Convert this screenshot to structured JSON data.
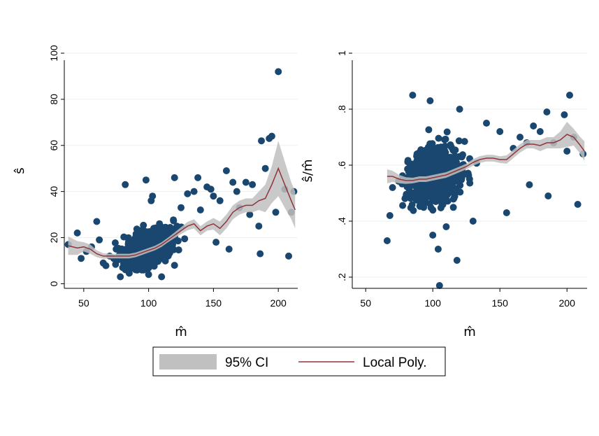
{
  "legend": {
    "ci_label": "95% CI",
    "line_label": "Local Poly."
  },
  "colors": {
    "points": "#1a476f",
    "ci": "#c0c0c0",
    "line": "#90353b",
    "grid": "#eaf2f3"
  },
  "chart_data": [
    {
      "type": "scatter",
      "xlabel": "m̂",
      "ylabel": "ŝ",
      "xlim": [
        35,
        215
      ],
      "ylim": [
        -2,
        100
      ],
      "xticks": [
        {
          "v": 50,
          "label": "50"
        },
        {
          "v": 100,
          "label": "100"
        },
        {
          "v": 150,
          "label": "150"
        },
        {
          "v": 200,
          "label": "200"
        }
      ],
      "yticks": [
        {
          "v": 0,
          "label": "0"
        },
        {
          "v": 20,
          "label": "20"
        },
        {
          "v": 40,
          "label": "40"
        },
        {
          "v": 60,
          "label": "60"
        },
        {
          "v": 80,
          "label": "80"
        },
        {
          "v": 100,
          "label": "100"
        }
      ],
      "grid": true,
      "cloud": {
        "x_range": [
          62,
          162
        ],
        "center_x": 100,
        "spread_x": 17,
        "n": 750,
        "slope": 0.22,
        "base": 16,
        "noise": 5
      },
      "points": [
        [
          38,
          17
        ],
        [
          45,
          22
        ],
        [
          48,
          11
        ],
        [
          52,
          14
        ],
        [
          56,
          16
        ],
        [
          60,
          27
        ],
        [
          62,
          19
        ],
        [
          65,
          9
        ],
        [
          70,
          12
        ],
        [
          75,
          15
        ],
        [
          82,
          43
        ],
        [
          98,
          45
        ],
        [
          102,
          36
        ],
        [
          103,
          38
        ],
        [
          120,
          46
        ],
        [
          125,
          33
        ],
        [
          130,
          39
        ],
        [
          135,
          40
        ],
        [
          138,
          46
        ],
        [
          140,
          32
        ],
        [
          145,
          42
        ],
        [
          148,
          41
        ],
        [
          150,
          38
        ],
        [
          152,
          18
        ],
        [
          155,
          36
        ],
        [
          160,
          49
        ],
        [
          162,
          15
        ],
        [
          165,
          44
        ],
        [
          168,
          40
        ],
        [
          170,
          33
        ],
        [
          175,
          44
        ],
        [
          178,
          30
        ],
        [
          180,
          43
        ],
        [
          185,
          25
        ],
        [
          186,
          13
        ],
        [
          187,
          62
        ],
        [
          190,
          50
        ],
        [
          193,
          63
        ],
        [
          195,
          64
        ],
        [
          198,
          31
        ],
        [
          200,
          92
        ],
        [
          205,
          41
        ],
        [
          208,
          12
        ],
        [
          210,
          31
        ],
        [
          212,
          40
        ],
        [
          100,
          4
        ],
        [
          110,
          3
        ],
        [
          90,
          6
        ],
        [
          80,
          7
        ],
        [
          120,
          8
        ]
      ],
      "fit_x": [
        38,
        45,
        50,
        55,
        60,
        65,
        70,
        75,
        80,
        85,
        90,
        95,
        100,
        105,
        110,
        115,
        120,
        125,
        130,
        135,
        140,
        145,
        150,
        155,
        160,
        165,
        170,
        175,
        180,
        185,
        190,
        195,
        200,
        205,
        210,
        213
      ],
      "fit_y": [
        16.5,
        15.5,
        16,
        15,
        13,
        12,
        12,
        12,
        12,
        12,
        12.5,
        13.5,
        14.5,
        15.5,
        17,
        19,
        21,
        23,
        25,
        26,
        23,
        25,
        26,
        24,
        27,
        31,
        33,
        34,
        34,
        36,
        37,
        43,
        50,
        43,
        36,
        32
      ],
      "ci_half": [
        4,
        3,
        2,
        2,
        1.5,
        1.2,
        1,
        1,
        1,
        1,
        1,
        1,
        1,
        1,
        1,
        1,
        1.2,
        1.5,
        1.8,
        2,
        2,
        2,
        2.5,
        3,
        3,
        3,
        3,
        3,
        3,
        4,
        6,
        8,
        12,
        10,
        8,
        8
      ]
    },
    {
      "type": "scatter",
      "xlabel": "m̂",
      "ylabel": "ŝ/m̂",
      "xlim": [
        40,
        215
      ],
      "ylim": [
        0.16,
        1.0
      ],
      "xticks": [
        {
          "v": 50,
          "label": "50"
        },
        {
          "v": 100,
          "label": "100"
        },
        {
          "v": 150,
          "label": "150"
        },
        {
          "v": 200,
          "label": "200"
        }
      ],
      "yticks": [
        {
          "v": 0.2,
          "label": ".2"
        },
        {
          "v": 0.4,
          "label": ".4"
        },
        {
          "v": 0.6,
          "label": ".6"
        },
        {
          "v": 0.8,
          "label": ".8"
        },
        {
          "v": 1.0,
          "label": "1"
        }
      ],
      "grid": true,
      "cloud": {
        "x_range": [
          65,
          165
        ],
        "center_x": 102,
        "spread_x": 17,
        "n": 750,
        "slope": 0.0008,
        "base": 0.56,
        "noise": 0.07
      },
      "points": [
        [
          66,
          0.33
        ],
        [
          68,
          0.42
        ],
        [
          70,
          0.52
        ],
        [
          85,
          0.85
        ],
        [
          98,
          0.83
        ],
        [
          100,
          0.35
        ],
        [
          104,
          0.3
        ],
        [
          105,
          0.17
        ],
        [
          110,
          0.38
        ],
        [
          118,
          0.26
        ],
        [
          120,
          0.8
        ],
        [
          130,
          0.4
        ],
        [
          140,
          0.75
        ],
        [
          150,
          0.72
        ],
        [
          155,
          0.43
        ],
        [
          160,
          0.66
        ],
        [
          165,
          0.7
        ],
        [
          170,
          0.68
        ],
        [
          172,
          0.53
        ],
        [
          175,
          0.74
        ],
        [
          180,
          0.72
        ],
        [
          185,
          0.79
        ],
        [
          186,
          0.49
        ],
        [
          190,
          0.68
        ],
        [
          198,
          0.78
        ],
        [
          200,
          0.65
        ],
        [
          202,
          0.85
        ],
        [
          205,
          0.7
        ],
        [
          208,
          0.46
        ],
        [
          212,
          0.64
        ]
      ],
      "fit_x": [
        66,
        70,
        75,
        80,
        85,
        90,
        95,
        100,
        105,
        110,
        115,
        120,
        125,
        130,
        135,
        140,
        145,
        150,
        155,
        160,
        165,
        170,
        175,
        180,
        185,
        190,
        195,
        200,
        205,
        210,
        213
      ],
      "fit_y": [
        0.56,
        0.56,
        0.55,
        0.545,
        0.545,
        0.55,
        0.55,
        0.555,
        0.56,
        0.565,
        0.575,
        0.585,
        0.595,
        0.61,
        0.62,
        0.625,
        0.625,
        0.62,
        0.62,
        0.64,
        0.66,
        0.675,
        0.675,
        0.67,
        0.68,
        0.68,
        0.69,
        0.71,
        0.7,
        0.67,
        0.65
      ],
      "ci_half": [
        0.025,
        0.02,
        0.015,
        0.012,
        0.01,
        0.01,
        0.01,
        0.01,
        0.01,
        0.01,
        0.01,
        0.01,
        0.01,
        0.012,
        0.012,
        0.012,
        0.012,
        0.012,
        0.015,
        0.015,
        0.015,
        0.015,
        0.015,
        0.02,
        0.02,
        0.02,
        0.03,
        0.045,
        0.03,
        0.03,
        0.035
      ]
    }
  ]
}
